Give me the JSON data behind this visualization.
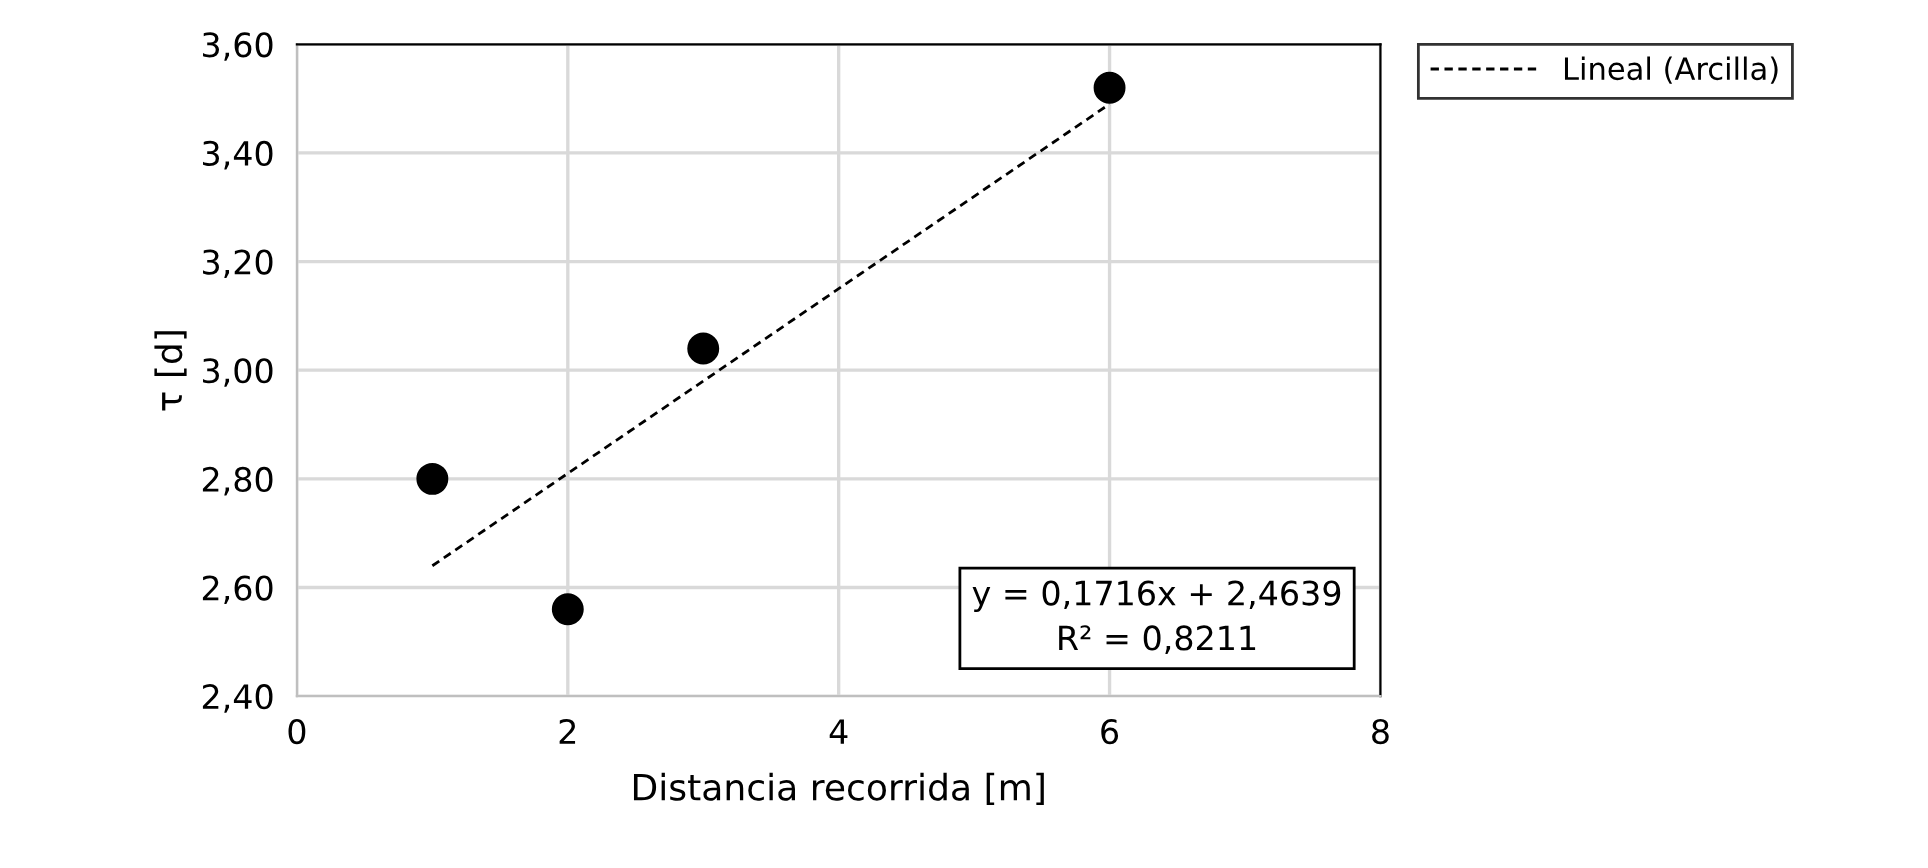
{
  "chart_data": {
    "type": "scatter",
    "xlabel": "Distancia recorrida [m]",
    "ylabel": "τ [d]",
    "series": [
      {
        "color": "#000000",
        "marker": "circle",
        "x": [
          1,
          2,
          3,
          6
        ],
        "values": [
          2.8,
          2.56,
          3.04,
          3.52
        ]
      },
      {
        "type": "line",
        "name": "Lineal (Arcilla)",
        "color": "#000000",
        "line_style": "dashed",
        "marker": "none",
        "x": [
          1,
          6
        ],
        "values": [
          2.64,
          3.49
        ]
      }
    ],
    "xlim": [
      0,
      8
    ],
    "xticks": [
      0,
      2,
      4,
      6,
      8
    ],
    "ylim": [
      2.4,
      3.6
    ],
    "yticks": [
      {
        "value": 2.4,
        "label": "2,40"
      },
      {
        "value": 2.6,
        "label": "2,60"
      },
      {
        "value": 2.8,
        "label": "2,80"
      },
      {
        "value": 3.0,
        "label": "3,00"
      },
      {
        "value": 3.2,
        "label": "3,20"
      },
      {
        "value": 3.4,
        "label": "3,40"
      },
      {
        "value": 3.6,
        "label": "3,60"
      }
    ],
    "grid": true,
    "legend": "right",
    "annotations": [
      "y = 0,1716x + 2,4639\nR² = 0,8211"
    ]
  }
}
